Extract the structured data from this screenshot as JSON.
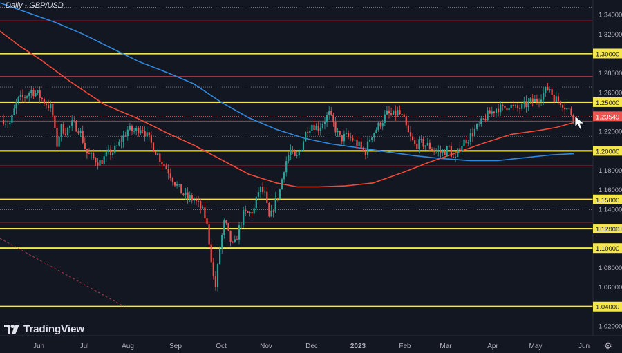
{
  "title": "Daily - GBP/USD",
  "logo_text": "TradingView",
  "settings_icon": "gear-icon",
  "colors": {
    "background": "#131722",
    "up": "#26a69a",
    "down": "#ef5350",
    "yellow_level": "#f5e74b",
    "red_level": "#b23a48",
    "ma_red": "#f04a36",
    "ma_blue": "#2e89e0",
    "price_label": "#ef5350"
  },
  "chart_data": {
    "type": "candlestick",
    "title": "Daily - GBP/USD",
    "ylim": [
      1.01,
      1.355
    ],
    "y_ticks": [
      "1.34000",
      "1.32000",
      "1.28000",
      "1.26000",
      "1.22000",
      "1.18000",
      "1.16000",
      "1.14000",
      "1.12000",
      "1.08000",
      "1.06000",
      "1.02000"
    ],
    "x_ticks": [
      "Jun",
      "Jul",
      "Aug",
      "Sep",
      "Oct",
      "Nov",
      "Dec",
      "2023",
      "Feb",
      "Mar",
      "Apr",
      "May",
      "Jun"
    ],
    "current_price": "1.23549",
    "current_price_value": 1.2355,
    "yellow_levels": [
      {
        "value": 1.3,
        "label": "1.30000"
      },
      {
        "value": 1.25,
        "label": "1.25000"
      },
      {
        "value": 1.2,
        "label": "1.20000"
      },
      {
        "value": 1.15,
        "label": "1.15000"
      },
      {
        "value": 1.12,
        "label": "1.12000"
      },
      {
        "value": 1.1,
        "label": "1.10000"
      },
      {
        "value": 1.04,
        "label": "1.04000"
      }
    ],
    "red_levels": [
      1.3335,
      1.2765,
      1.2305,
      1.1845,
      1.1265
    ],
    "dotted_levels": [
      1.3475,
      1.2655,
      1.215,
      1.1395
    ],
    "moving_averages": [
      {
        "color": "ma_red",
        "points": [
          [
            0,
            1.323
          ],
          [
            30,
            1.307
          ],
          [
            60,
            1.293
          ],
          [
            100,
            1.272
          ],
          [
            150,
            1.248
          ],
          [
            200,
            1.233
          ],
          [
            240,
            1.219
          ],
          [
            280,
            1.206
          ],
          [
            320,
            1.191
          ],
          [
            360,
            1.176
          ],
          [
            400,
            1.167
          ],
          [
            430,
            1.163
          ],
          [
            460,
            1.163
          ],
          [
            500,
            1.164
          ],
          [
            540,
            1.167
          ],
          [
            580,
            1.177
          ],
          [
            620,
            1.188
          ],
          [
            660,
            1.198
          ],
          [
            700,
            1.208
          ],
          [
            740,
            1.217
          ],
          [
            780,
            1.221
          ],
          [
            805,
            1.224
          ],
          [
            830,
            1.229
          ]
        ]
      },
      {
        "color": "ma_blue",
        "points": [
          [
            0,
            1.352
          ],
          [
            40,
            1.342
          ],
          [
            80,
            1.332
          ],
          [
            120,
            1.32
          ],
          [
            160,
            1.306
          ],
          [
            200,
            1.292
          ],
          [
            240,
            1.281
          ],
          [
            280,
            1.269
          ],
          [
            320,
            1.25
          ],
          [
            360,
            1.234
          ],
          [
            400,
            1.222
          ],
          [
            440,
            1.213
          ],
          [
            480,
            1.207
          ],
          [
            520,
            1.203
          ],
          [
            560,
            1.199
          ],
          [
            600,
            1.195
          ],
          [
            640,
            1.192
          ],
          [
            680,
            1.19
          ],
          [
            720,
            1.19
          ],
          [
            760,
            1.193
          ],
          [
            800,
            1.196
          ],
          [
            830,
            1.197
          ]
        ]
      }
    ],
    "close_path": [
      [
        5,
        1.232
      ],
      [
        15,
        1.228
      ],
      [
        25,
        1.252
      ],
      [
        35,
        1.255
      ],
      [
        45,
        1.262
      ],
      [
        55,
        1.258
      ],
      [
        65,
        1.25
      ],
      [
        75,
        1.243
      ],
      [
        82,
        1.205
      ],
      [
        88,
        1.224
      ],
      [
        95,
        1.22
      ],
      [
        105,
        1.228
      ],
      [
        115,
        1.222
      ],
      [
        125,
        1.198
      ],
      [
        135,
        1.192
      ],
      [
        145,
        1.188
      ],
      [
        155,
        1.196
      ],
      [
        165,
        1.2
      ],
      [
        175,
        1.21
      ],
      [
        185,
        1.222
      ],
      [
        195,
        1.22
      ],
      [
        205,
        1.225
      ],
      [
        215,
        1.212
      ],
      [
        225,
        1.2
      ],
      [
        235,
        1.188
      ],
      [
        245,
        1.178
      ],
      [
        255,
        1.165
      ],
      [
        262,
        1.158
      ],
      [
        270,
        1.152
      ],
      [
        280,
        1.15
      ],
      [
        290,
        1.142
      ],
      [
        298,
        1.13
      ],
      [
        305,
        1.095
      ],
      [
        308,
        1.072
      ],
      [
        312,
        1.06
      ],
      [
        318,
        1.1
      ],
      [
        325,
        1.128
      ],
      [
        332,
        1.11
      ],
      [
        338,
        1.1
      ],
      [
        345,
        1.118
      ],
      [
        352,
        1.135
      ],
      [
        360,
        1.135
      ],
      [
        368,
        1.14
      ],
      [
        375,
        1.162
      ],
      [
        383,
        1.155
      ],
      [
        390,
        1.128
      ],
      [
        397,
        1.145
      ],
      [
        405,
        1.16
      ],
      [
        412,
        1.186
      ],
      [
        420,
        1.2
      ],
      [
        428,
        1.19
      ],
      [
        436,
        1.205
      ],
      [
        444,
        1.222
      ],
      [
        452,
        1.228
      ],
      [
        460,
        1.223
      ],
      [
        468,
        1.23
      ],
      [
        476,
        1.238
      ],
      [
        484,
        1.225
      ],
      [
        492,
        1.212
      ],
      [
        500,
        1.215
      ],
      [
        510,
        1.212
      ],
      [
        520,
        1.205
      ],
      [
        528,
        1.197
      ],
      [
        536,
        1.215
      ],
      [
        544,
        1.222
      ],
      [
        552,
        1.23
      ],
      [
        560,
        1.238
      ],
      [
        568,
        1.236
      ],
      [
        576,
        1.24
      ],
      [
        584,
        1.232
      ],
      [
        592,
        1.215
      ],
      [
        600,
        1.206
      ],
      [
        610,
        1.208
      ],
      [
        620,
        1.205
      ],
      [
        630,
        1.2
      ],
      [
        640,
        1.198
      ],
      [
        650,
        1.203
      ],
      [
        658,
        1.188
      ],
      [
        665,
        1.205
      ],
      [
        672,
        1.21
      ],
      [
        680,
        1.215
      ],
      [
        688,
        1.222
      ],
      [
        696,
        1.228
      ],
      [
        704,
        1.236
      ],
      [
        712,
        1.24
      ],
      [
        720,
        1.245
      ],
      [
        728,
        1.242
      ],
      [
        736,
        1.248
      ],
      [
        744,
        1.243
      ],
      [
        752,
        1.244
      ],
      [
        760,
        1.247
      ],
      [
        768,
        1.25
      ],
      [
        776,
        1.252
      ],
      [
        784,
        1.258
      ],
      [
        790,
        1.262
      ],
      [
        795,
        1.265
      ],
      [
        801,
        1.255
      ],
      [
        807,
        1.252
      ],
      [
        813,
        1.25
      ],
      [
        819,
        1.244
      ],
      [
        825,
        1.24
      ],
      [
        830,
        1.2355
      ]
    ]
  }
}
